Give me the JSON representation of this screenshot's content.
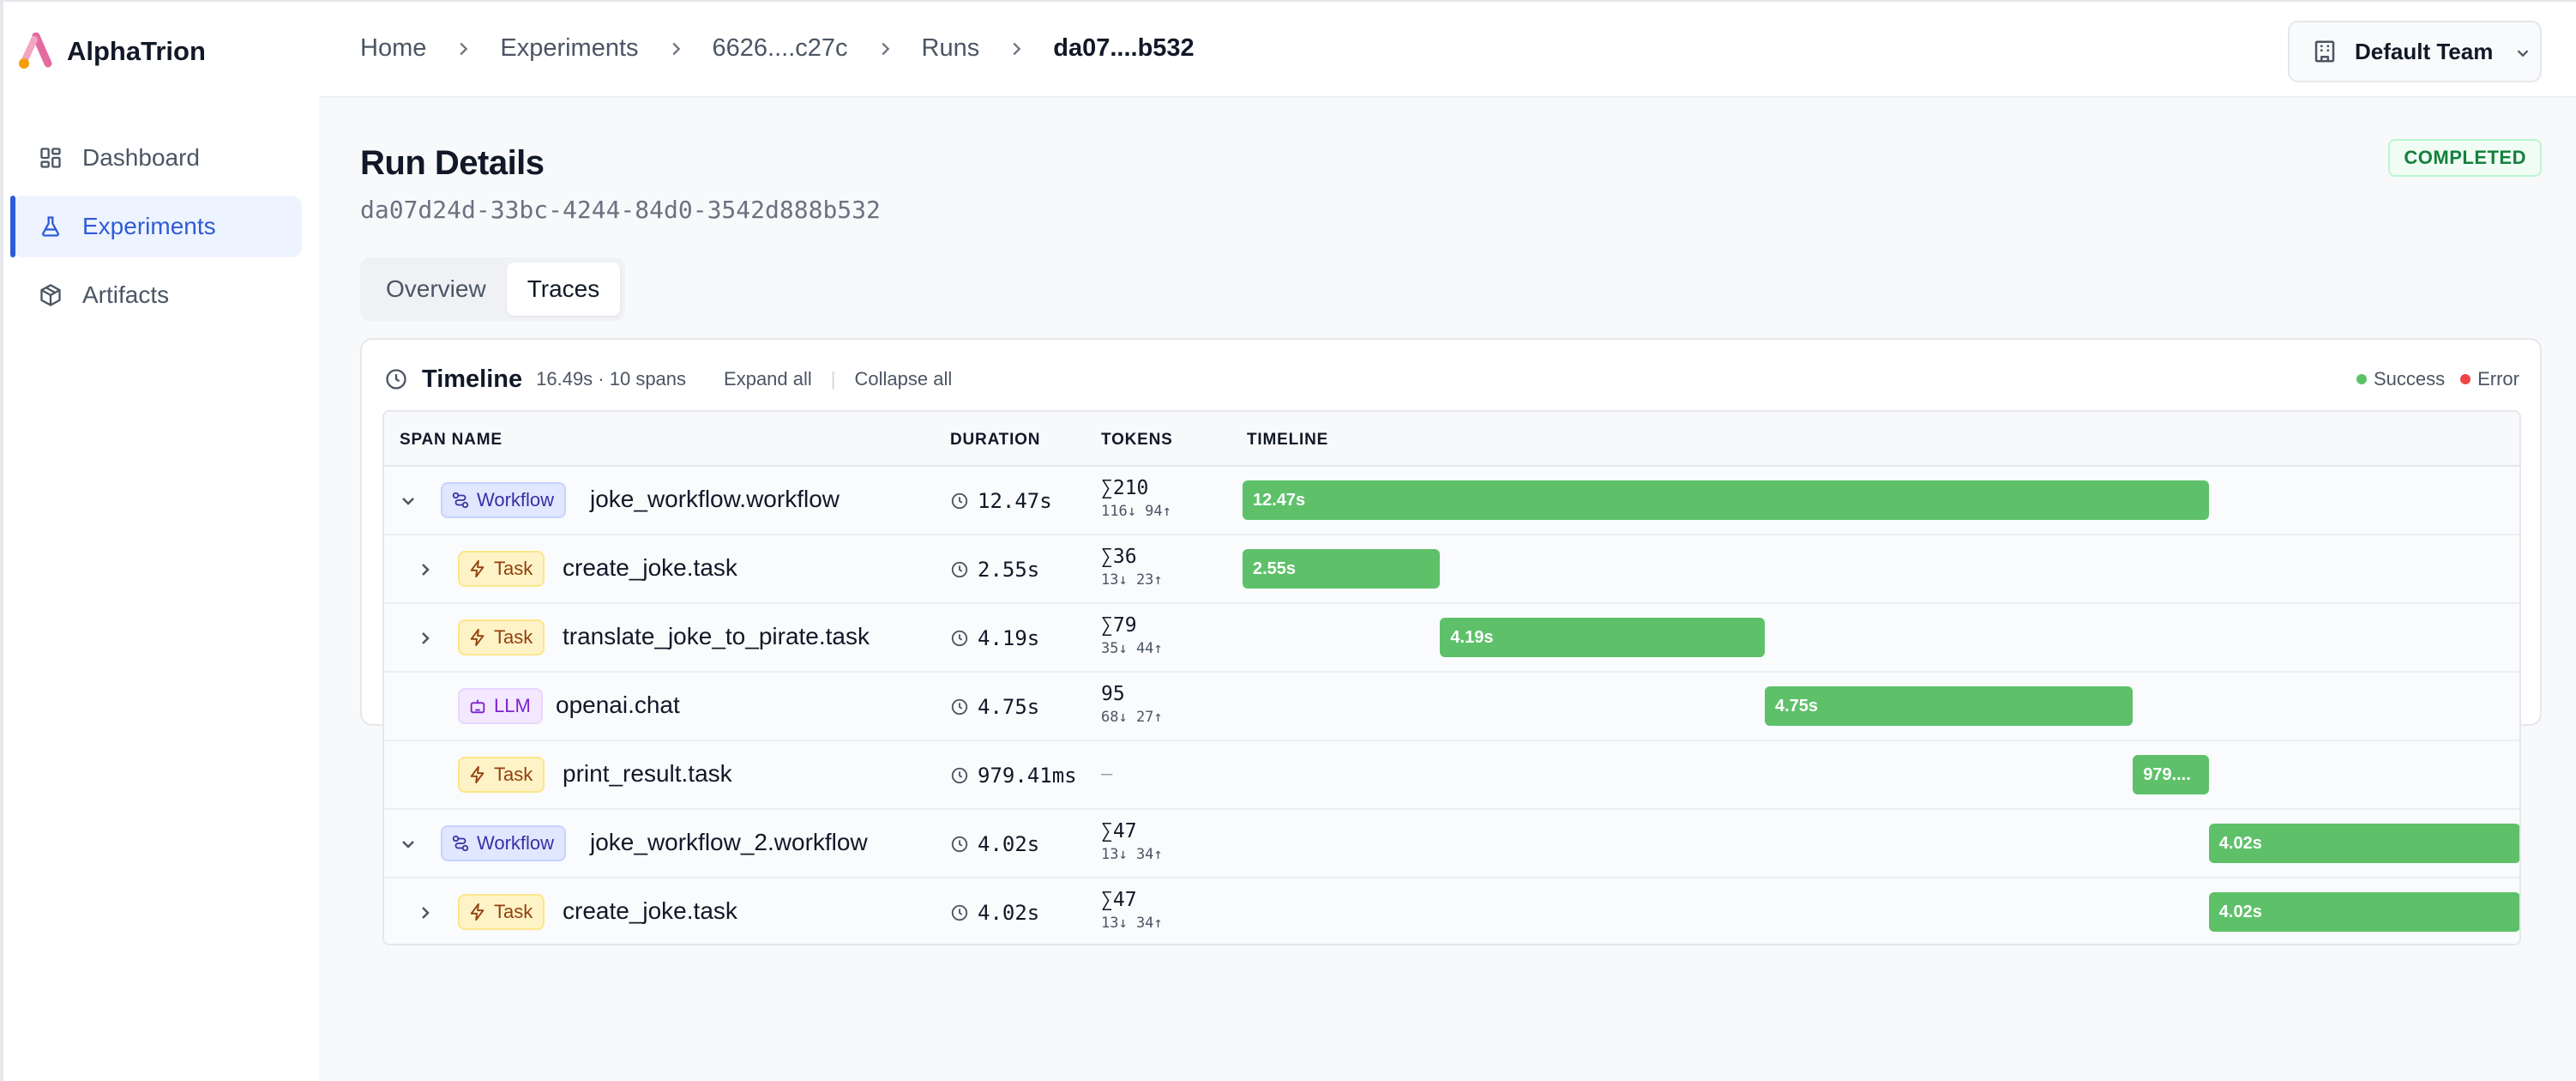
{
  "app": {
    "name": "AlphaTrion"
  },
  "sidebar": {
    "items": [
      {
        "label": "Dashboard",
        "icon": "grid-icon",
        "active": false
      },
      {
        "label": "Experiments",
        "icon": "flask-icon",
        "active": true
      },
      {
        "label": "Artifacts",
        "icon": "package-icon",
        "active": false
      }
    ]
  },
  "breadcrumb": [
    "Home",
    "Experiments",
    "6626....c27c",
    "Runs",
    "da07....b532"
  ],
  "team": {
    "label": "Default Team"
  },
  "page": {
    "title": "Run Details",
    "run_id": "da07d24d-33bc-4244-84d0-3542d888b532",
    "status": "COMPLETED"
  },
  "tabs": [
    "Overview",
    "Traces"
  ],
  "active_tab": "Traces",
  "timeline": {
    "title": "Timeline",
    "meta": "16.49s · 10 spans",
    "expand_all": "Expand all",
    "collapse_all": "Collapse all",
    "legend": {
      "success": "Success",
      "error": "Error"
    },
    "colors": {
      "success": "#5ec16a",
      "error": "#ef4444"
    },
    "columns": [
      "SPAN NAME",
      "DURATION",
      "TOKENS",
      "TIMELINE"
    ],
    "total_seconds": 16.49,
    "rows": [
      {
        "kind": "Workflow",
        "name": "joke_workflow.workflow",
        "duration": "12.47s",
        "tokens_total": "∑210",
        "tokens_io": "116↓ 94↑",
        "bar_label": "12.47s",
        "start_s": 0.0,
        "length_s": 12.47,
        "depth": 0,
        "toggle": "expanded"
      },
      {
        "kind": "Task",
        "name": "create_joke.task",
        "duration": "2.55s",
        "tokens_total": "∑36",
        "tokens_io": "13↓ 23↑",
        "bar_label": "2.55s",
        "start_s": 0.0,
        "length_s": 2.55,
        "depth": 1,
        "toggle": "collapsed"
      },
      {
        "kind": "Task",
        "name": "translate_joke_to_pirate.task",
        "duration": "4.19s",
        "tokens_total": "∑79",
        "tokens_io": "35↓ 44↑",
        "bar_label": "4.19s",
        "start_s": 2.55,
        "length_s": 4.19,
        "depth": 1,
        "toggle": "collapsed"
      },
      {
        "kind": "LLM",
        "name": "openai.chat",
        "duration": "4.75s",
        "tokens_total": "95",
        "tokens_io": "68↓ 27↑",
        "bar_label": "4.75s",
        "start_s": 6.74,
        "length_s": 4.75,
        "depth": 1,
        "toggle": "none"
      },
      {
        "kind": "Task",
        "name": "print_result.task",
        "duration": "979.41ms",
        "tokens_total": "",
        "tokens_io": "",
        "tokens_none": "—",
        "bar_label": "979....",
        "start_s": 11.49,
        "length_s": 0.98,
        "depth": 1,
        "toggle": "none"
      },
      {
        "kind": "Workflow",
        "name": "joke_workflow_2.workflow",
        "duration": "4.02s",
        "tokens_total": "∑47",
        "tokens_io": "13↓ 34↑",
        "bar_label": "4.02s",
        "start_s": 12.47,
        "length_s": 4.02,
        "depth": 0,
        "toggle": "expanded"
      },
      {
        "kind": "Task",
        "name": "create_joke.task",
        "duration": "4.02s",
        "tokens_total": "∑47",
        "tokens_io": "13↓ 34↑",
        "bar_label": "4.02s",
        "start_s": 12.47,
        "length_s": 4.02,
        "depth": 1,
        "toggle": "collapsed"
      }
    ]
  }
}
